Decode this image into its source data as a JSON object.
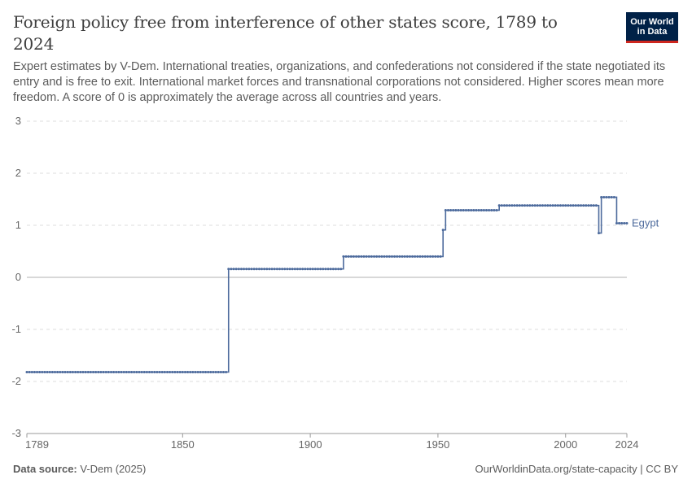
{
  "header": {
    "title": "Foreign policy free from interference of other states score, 1789 to 2024",
    "subtitle": "Expert estimates by V-Dem. International treaties, organizations, and confederations not considered if the state negotiated its entry and is free to exit. International market forces and transnational corporations not considered. Higher scores mean more freedom. A score of 0 is approximately the average across all countries and years.",
    "logo_line1": "Our World",
    "logo_line2": "in Data"
  },
  "footer": {
    "source_label": "Data source:",
    "source_value": "V-Dem (2025)",
    "url": "OurWorldinData.org/state-capacity | CC BY"
  },
  "colors": {
    "series": "#4c6a9c",
    "grid": "#dddddd",
    "zero_line": "#b0b0b0"
  },
  "chart_data": {
    "type": "line",
    "xlim": [
      1789,
      2024
    ],
    "ylim": [
      -3,
      3
    ],
    "y_ticks": [
      -3,
      -2,
      -1,
      0,
      1,
      2,
      3
    ],
    "x_ticks": [
      1789,
      1850,
      1900,
      1950,
      2000,
      2024
    ],
    "grid": "horizontal dashed",
    "series": [
      {
        "name": "Egypt",
        "steps": [
          {
            "from": 1789,
            "to": 1867,
            "value": -1.82
          },
          {
            "from": 1868,
            "to": 1912,
            "value": 0.16
          },
          {
            "from": 1913,
            "to": 1951,
            "value": 0.4
          },
          {
            "from": 1952,
            "to": 1952,
            "value": 0.91
          },
          {
            "from": 1953,
            "to": 1973,
            "value": 1.29
          },
          {
            "from": 1974,
            "to": 2012,
            "value": 1.38
          },
          {
            "from": 2013,
            "to": 2013,
            "value": 0.85
          },
          {
            "from": 2014,
            "to": 2019,
            "value": 1.54
          },
          {
            "from": 2020,
            "to": 2024,
            "value": 1.04
          }
        ]
      }
    ]
  }
}
